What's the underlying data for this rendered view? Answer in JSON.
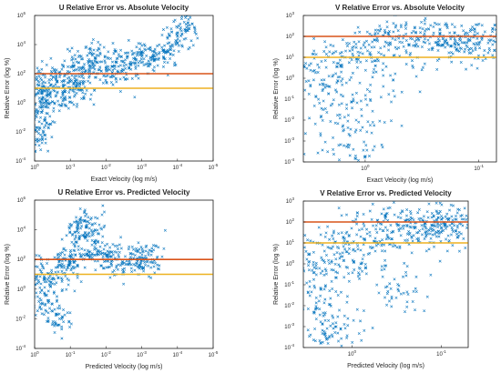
{
  "chart_data": [
    {
      "type": "scatter",
      "title": "U Relative Error vs. Absolute Velocity",
      "xlabel": "Exact Velocity (log m/s)",
      "ylabel": "Relative Error (log %)",
      "x_scale": "log",
      "y_scale": "log",
      "x_reversed": true,
      "xlim": [
        1,
        1e-05
      ],
      "ylim": [
        0.0001,
        1000000
      ],
      "xticks": [
        {
          "v": 1,
          "b": "10",
          "e": "0"
        },
        {
          "v": 0.1,
          "b": "10",
          "e": "-1"
        },
        {
          "v": 0.01,
          "b": "10",
          "e": "-2"
        },
        {
          "v": 0.001,
          "b": "10",
          "e": "-3"
        },
        {
          "v": 0.0001,
          "b": "10",
          "e": "-4"
        },
        {
          "v": 1e-05,
          "b": "10",
          "e": "-5"
        }
      ],
      "yticks": [
        {
          "v": 0.0001,
          "b": "10",
          "e": "-4"
        },
        {
          "v": 0.01,
          "b": "10",
          "e": "-2"
        },
        {
          "v": 1,
          "b": "10",
          "e": "0"
        },
        {
          "v": 100,
          "b": "10",
          "e": "2"
        },
        {
          "v": 10000,
          "b": "10",
          "e": "4"
        },
        {
          "v": 1000000,
          "b": "10",
          "e": "6"
        }
      ],
      "hlines": [
        {
          "y": 100,
          "color": "#D95319"
        },
        {
          "y": 10,
          "color": "#EDB120"
        }
      ],
      "marker_color": "#0072BD",
      "point_cloud": [
        {
          "x": 1,
          "y": 3
        },
        {
          "x": 0.8,
          "y": 30
        },
        {
          "x": 0.6,
          "y": 0.3
        },
        {
          "x": 0.4,
          "y": 4
        },
        {
          "x": 0.25,
          "y": 60
        },
        {
          "x": 0.15,
          "y": 2
        },
        {
          "x": 0.1,
          "y": 40
        },
        {
          "x": 0.08,
          "y": 300
        },
        {
          "x": 0.05,
          "y": 8
        },
        {
          "x": 0.03,
          "y": 200
        },
        {
          "x": 0.02,
          "y": 1000
        },
        {
          "x": 0.01,
          "y": 150
        },
        {
          "x": 0.005,
          "y": 600
        },
        {
          "x": 0.002,
          "y": 400
        },
        {
          "x": 0.001,
          "y": 1500
        },
        {
          "x": 0.0005,
          "y": 1000
        },
        {
          "x": 0.0002,
          "y": 3000
        },
        {
          "x": 0.0001,
          "y": 40000
        },
        {
          "x": 5e-05,
          "y": 300000
        },
        {
          "x": 0.7,
          "y": 0.003
        },
        {
          "x": 0.9,
          "y": 0.02
        }
      ]
    },
    {
      "type": "scatter",
      "title": "V Relative Error vs. Absolute Velocity",
      "xlabel": "Exact Velocity (log m/s)",
      "ylabel": "Relative Error (log %)",
      "x_scale": "log",
      "y_scale": "log",
      "x_reversed": true,
      "xlim": [
        3.5,
        0.07
      ],
      "ylim": [
        0.0001,
        1000
      ],
      "xticks": [
        {
          "v": 1,
          "b": "10",
          "e": "0"
        },
        {
          "v": 0.1,
          "b": "10",
          "e": "-1"
        }
      ],
      "yticks": [
        {
          "v": 0.0001,
          "b": "10",
          "e": "-4"
        },
        {
          "v": 0.001,
          "b": "10",
          "e": "-3"
        },
        {
          "v": 0.01,
          "b": "10",
          "e": "-2"
        },
        {
          "v": 0.1,
          "b": "10",
          "e": "-1"
        },
        {
          "v": 1,
          "b": "10",
          "e": "0"
        },
        {
          "v": 10,
          "b": "10",
          "e": "1"
        },
        {
          "v": 100,
          "b": "10",
          "e": "2"
        },
        {
          "v": 1000,
          "b": "10",
          "e": "3"
        }
      ],
      "hlines": [
        {
          "y": 100,
          "color": "#D95319"
        },
        {
          "y": 10,
          "color": "#EDB120"
        }
      ],
      "marker_color": "#0072BD",
      "point_cloud": [
        {
          "x": 3,
          "y": 5
        },
        {
          "x": 2.5,
          "y": 0.5
        },
        {
          "x": 2,
          "y": 0.05
        },
        {
          "x": 1.5,
          "y": 10
        },
        {
          "x": 1.2,
          "y": 0.01
        },
        {
          "x": 1,
          "y": 30
        },
        {
          "x": 0.8,
          "y": 2
        },
        {
          "x": 0.6,
          "y": 50
        },
        {
          "x": 0.4,
          "y": 80
        },
        {
          "x": 0.3,
          "y": 100
        },
        {
          "x": 0.2,
          "y": 60
        },
        {
          "x": 0.15,
          "y": 40
        },
        {
          "x": 0.12,
          "y": 70
        },
        {
          "x": 0.1,
          "y": 50
        },
        {
          "x": 0.08,
          "y": 60
        },
        {
          "x": 1.4,
          "y": 0.0005
        }
      ]
    },
    {
      "type": "scatter",
      "title": "U Relative Error vs. Predicted Velocity",
      "xlabel": "Predicted Velocity (log m/s)",
      "ylabel": "Relative Error (log %)",
      "x_scale": "log",
      "y_scale": "log",
      "x_reversed": true,
      "xlim": [
        1,
        1e-05
      ],
      "ylim": [
        0.0001,
        1000000
      ],
      "xticks": [
        {
          "v": 1,
          "b": "10",
          "e": "0"
        },
        {
          "v": 0.1,
          "b": "10",
          "e": "-1"
        },
        {
          "v": 0.01,
          "b": "10",
          "e": "-2"
        },
        {
          "v": 0.001,
          "b": "10",
          "e": "-3"
        },
        {
          "v": 0.0001,
          "b": "10",
          "e": "-4"
        },
        {
          "v": 1e-05,
          "b": "10",
          "e": "-5"
        }
      ],
      "yticks": [
        {
          "v": 0.0001,
          "b": "10",
          "e": "-4"
        },
        {
          "v": 0.01,
          "b": "10",
          "e": "-2"
        },
        {
          "v": 1,
          "b": "10",
          "e": "0"
        },
        {
          "v": 100,
          "b": "10",
          "e": "2"
        },
        {
          "v": 10000,
          "b": "10",
          "e": "4"
        },
        {
          "v": 1000000,
          "b": "10",
          "e": "6"
        }
      ],
      "hlines": [
        {
          "y": 100,
          "color": "#D95319"
        },
        {
          "y": 10,
          "color": "#EDB120"
        }
      ],
      "marker_color": "#0072BD",
      "point_cloud": [
        {
          "x": 1,
          "y": 2
        },
        {
          "x": 0.7,
          "y": 20
        },
        {
          "x": 0.5,
          "y": 0.1
        },
        {
          "x": 0.3,
          "y": 5
        },
        {
          "x": 0.2,
          "y": 0.01
        },
        {
          "x": 0.15,
          "y": 100
        },
        {
          "x": 0.1,
          "y": 50
        },
        {
          "x": 0.07,
          "y": 3000
        },
        {
          "x": 0.05,
          "y": 30000
        },
        {
          "x": 0.03,
          "y": 300
        },
        {
          "x": 0.02,
          "y": 10000
        },
        {
          "x": 0.01,
          "y": 200
        },
        {
          "x": 0.005,
          "y": 100
        },
        {
          "x": 0.002,
          "y": 100
        },
        {
          "x": 0.001,
          "y": 100
        },
        {
          "x": 0.0005,
          "y": 100
        }
      ]
    },
    {
      "type": "scatter",
      "title": "V Relative Error vs. Predicted Velocity",
      "xlabel": "Predicted Velocity (log m/s)",
      "ylabel": "Relative Error (log %)",
      "x_scale": "log",
      "y_scale": "log",
      "x_reversed": true,
      "xlim": [
        3.5,
        0.05
      ],
      "ylim": [
        0.0001,
        1000
      ],
      "xticks": [
        {
          "v": 1,
          "b": "10",
          "e": "0"
        },
        {
          "v": 0.1,
          "b": "10",
          "e": "-1"
        }
      ],
      "yticks": [
        {
          "v": 0.0001,
          "b": "10",
          "e": "-4"
        },
        {
          "v": 0.001,
          "b": "10",
          "e": "-3"
        },
        {
          "v": 0.01,
          "b": "10",
          "e": "-2"
        },
        {
          "v": 0.1,
          "b": "10",
          "e": "-1"
        },
        {
          "v": 1,
          "b": "10",
          "e": "0"
        },
        {
          "v": 10,
          "b": "10",
          "e": "1"
        },
        {
          "v": 100,
          "b": "10",
          "e": "2"
        },
        {
          "v": 1000,
          "b": "10",
          "e": "3"
        }
      ],
      "hlines": [
        {
          "y": 100,
          "color": "#D95319"
        },
        {
          "y": 10,
          "color": "#EDB120"
        }
      ],
      "marker_color": "#0072BD",
      "point_cloud": [
        {
          "x": 3,
          "y": 3
        },
        {
          "x": 2.5,
          "y": 0.3
        },
        {
          "x": 2,
          "y": 0.02
        },
        {
          "x": 1.5,
          "y": 0.001
        },
        {
          "x": 1.2,
          "y": 5
        },
        {
          "x": 1,
          "y": 10
        },
        {
          "x": 0.8,
          "y": 1
        },
        {
          "x": 0.6,
          "y": 130
        },
        {
          "x": 0.4,
          "y": 40
        },
        {
          "x": 0.3,
          "y": 0.05
        },
        {
          "x": 0.2,
          "y": 50
        },
        {
          "x": 0.15,
          "y": 60
        },
        {
          "x": 0.12,
          "y": 70
        },
        {
          "x": 0.1,
          "y": 80
        },
        {
          "x": 0.08,
          "y": 70
        },
        {
          "x": 0.06,
          "y": 80
        },
        {
          "x": 1.8,
          "y": 0.0003
        }
      ]
    }
  ]
}
